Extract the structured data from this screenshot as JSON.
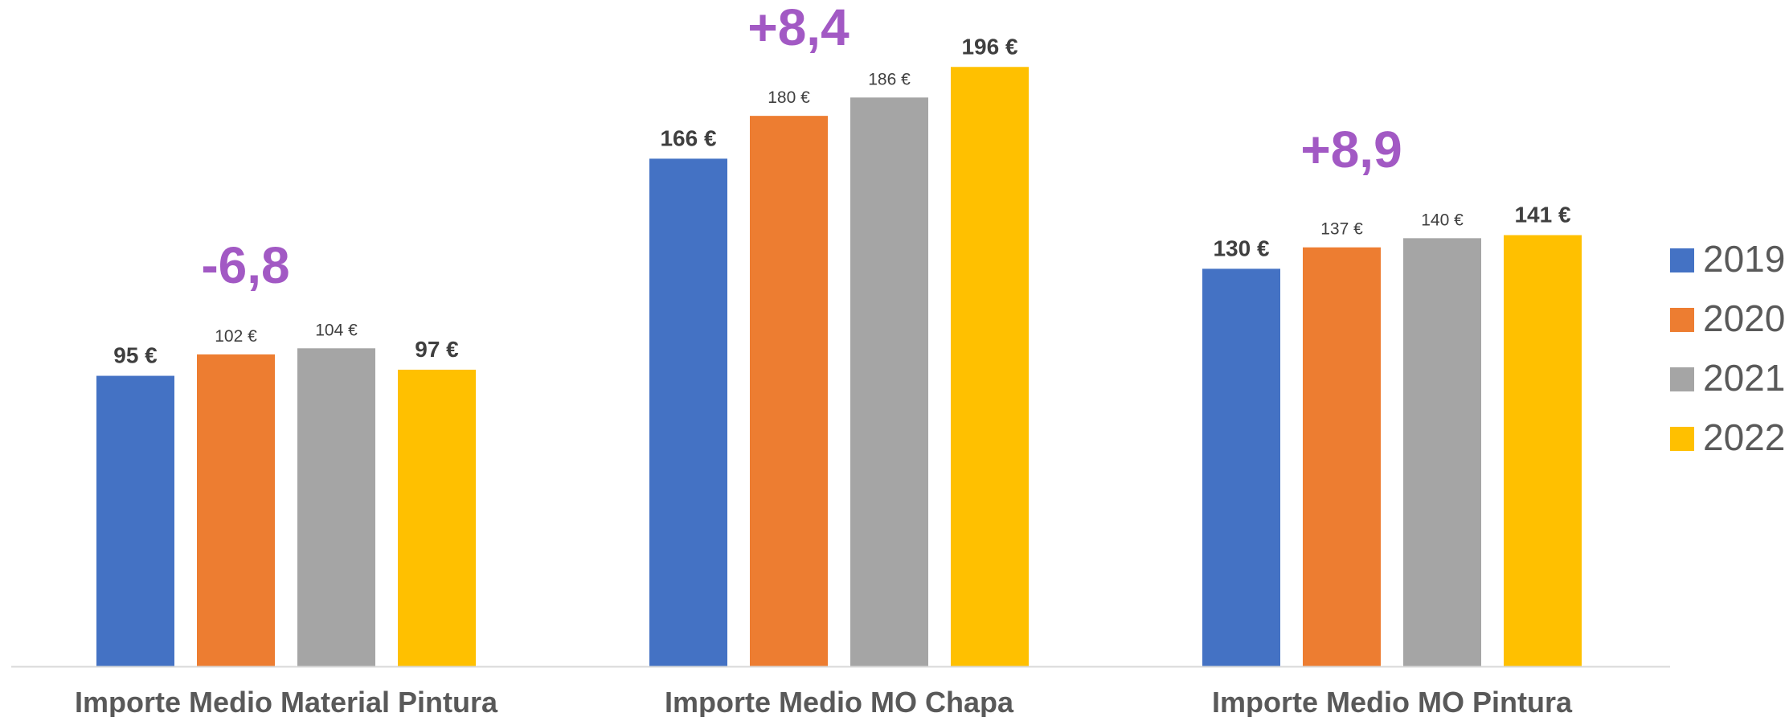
{
  "chart_data": {
    "type": "bar",
    "title": "",
    "xlabel": "",
    "ylabel": "",
    "ylim": [
      0,
      210
    ],
    "grid": false,
    "legend_position": "right",
    "categories": [
      "Importe Medio Material Pintura",
      "Importe Medio MO Chapa",
      "Importe Medio MO Pintura"
    ],
    "series": [
      {
        "name": "2019",
        "color": "#4472C4",
        "values": [
          95,
          166,
          130
        ],
        "labels": [
          "95 €",
          "166 €",
          "130 €"
        ],
        "bold_labels": true
      },
      {
        "name": "2020",
        "color": "#ED7D31",
        "values": [
          102,
          180,
          137
        ],
        "labels": [
          "102 €",
          "180 €",
          "137 €"
        ],
        "bold_labels": false
      },
      {
        "name": "2021",
        "color": "#A5A5A5",
        "values": [
          104,
          186,
          140
        ],
        "labels": [
          "104 €",
          "186 €",
          "140 €"
        ],
        "bold_labels": false
      },
      {
        "name": "2022",
        "color": "#FFC000",
        "values": [
          97,
          196,
          141
        ],
        "labels": [
          "97 €",
          "196 €",
          "141 €"
        ],
        "bold_labels": true
      }
    ],
    "annotations": [
      {
        "category_index": 0,
        "text": "-6,8",
        "color": "#A259C4"
      },
      {
        "category_index": 1,
        "text": "+8,4",
        "color": "#A259C4"
      },
      {
        "category_index": 2,
        "text": "+8,9",
        "color": "#A259C4"
      }
    ],
    "axis_color": "#D9D9D9"
  }
}
